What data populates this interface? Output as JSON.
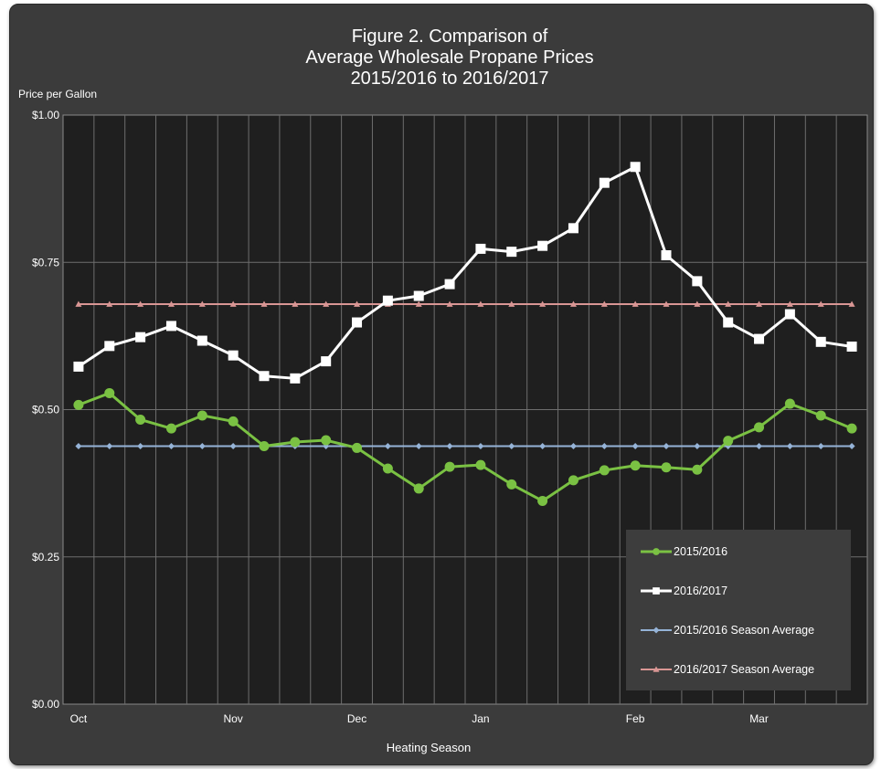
{
  "colors": {
    "series_2015": "#7ac143",
    "series_2016": "#ffffff",
    "avg_2015": "#95b3d7",
    "avg_2016": "#d99694",
    "plot_bg": "#1f1f1f",
    "frame_bg": "#3b3b3b",
    "grid": "#6e6e6e"
  },
  "chart_data": {
    "type": "line",
    "title_lines": [
      "Figure 2. Comparison of",
      "Average Wholesale Propane Prices",
      "2015/2016  to 2016/2017"
    ],
    "ylabel": "Price per Gallon",
    "xlabel": "Heating Season",
    "ylim": [
      0,
      1
    ],
    "yticks": [
      0,
      0.25,
      0.5,
      0.75,
      1.0
    ],
    "ytick_labels": [
      "$0.00",
      "$0.25",
      "$0.50",
      "$0.75",
      "$1.00"
    ],
    "month_labels": [
      {
        "label": "Oct",
        "index": 0
      },
      {
        "label": "Nov",
        "index": 5
      },
      {
        "label": "Dec",
        "index": 9
      },
      {
        "label": "Jan",
        "index": 13
      },
      {
        "label": "Feb",
        "index": 18
      },
      {
        "label": "Mar",
        "index": 22
      }
    ],
    "grid": true,
    "legend_position": "bottom-right",
    "series": [
      {
        "name": "2015/2016",
        "marker": "circle",
        "values": [
          0.508,
          0.528,
          0.483,
          0.468,
          0.49,
          0.48,
          0.438,
          0.445,
          0.448,
          0.435,
          0.4,
          0.366,
          0.403,
          0.406,
          0.373,
          0.345,
          0.38,
          0.397,
          0.405,
          0.402,
          0.398,
          0.447,
          0.47,
          0.51,
          0.49,
          0.468
        ]
      },
      {
        "name": "2016/2017",
        "marker": "square",
        "values": [
          0.573,
          0.608,
          0.623,
          0.642,
          0.617,
          0.592,
          0.557,
          0.553,
          0.582,
          0.648,
          0.685,
          0.693,
          0.713,
          0.773,
          0.768,
          0.778,
          0.808,
          0.885,
          0.912,
          0.762,
          0.718,
          0.648,
          0.62,
          0.662,
          0.615,
          0.607
        ]
      },
      {
        "name": "2015/2016 Season Average",
        "marker": "diamond",
        "values": [
          0.438,
          0.438,
          0.438,
          0.438,
          0.438,
          0.438,
          0.438,
          0.438,
          0.438,
          0.438,
          0.438,
          0.438,
          0.438,
          0.438,
          0.438,
          0.438,
          0.438,
          0.438,
          0.438,
          0.438,
          0.438,
          0.438,
          0.438,
          0.438,
          0.438,
          0.438
        ]
      },
      {
        "name": "2016/2017 Season Average",
        "marker": "triangle",
        "values": [
          0.679,
          0.679,
          0.679,
          0.679,
          0.679,
          0.679,
          0.679,
          0.679,
          0.679,
          0.679,
          0.679,
          0.679,
          0.679,
          0.679,
          0.679,
          0.679,
          0.679,
          0.679,
          0.679,
          0.679,
          0.679,
          0.679,
          0.679,
          0.679,
          0.679,
          0.679
        ]
      }
    ]
  }
}
